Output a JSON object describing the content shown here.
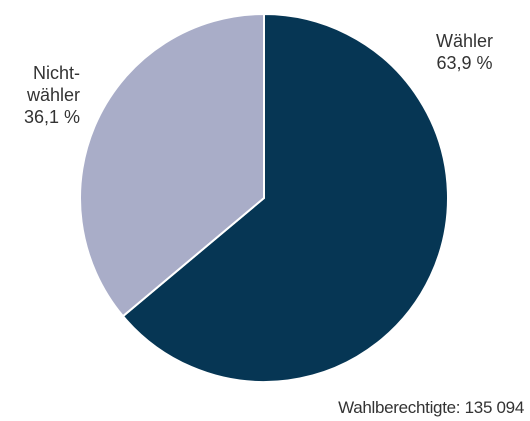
{
  "chart_data": {
    "type": "pie",
    "categories": [
      "Wähler",
      "Nicht-\nwähler"
    ],
    "values": [
      63.9,
      36.1
    ],
    "value_labels": [
      "63,9 %",
      "36,1 %"
    ],
    "colors": [
      "#063654",
      "#a9adc8"
    ],
    "note": "Wahlberechtigte: 135 094"
  }
}
